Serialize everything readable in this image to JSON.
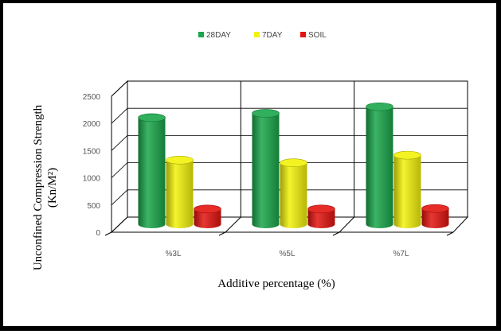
{
  "chart_data": {
    "type": "bar",
    "categories": [
      "%3L",
      "%5L",
      "%7L"
    ],
    "series": [
      {
        "name": "28DAY",
        "values": [
          1960,
          2040,
          2160
        ],
        "color": "#1aa64a"
      },
      {
        "name": "7DAY",
        "values": [
          1180,
          1130,
          1270
        ],
        "color": "#f2f20a"
      },
      {
        "name": "SOIL",
        "values": [
          280,
          280,
          290
        ],
        "color": "#e3140f"
      }
    ],
    "yticks": [
      0,
      500,
      1000,
      1500,
      2000,
      2500
    ],
    "ylim": [
      0,
      2500
    ],
    "xlabel": "Additive percentage (%)",
    "ylabel_line1": "Unconfined Compression Strength",
    "ylabel_line2": "(Kn/M²)",
    "legend_position": "top-center",
    "grid": true,
    "style": "3d-cylinder"
  }
}
